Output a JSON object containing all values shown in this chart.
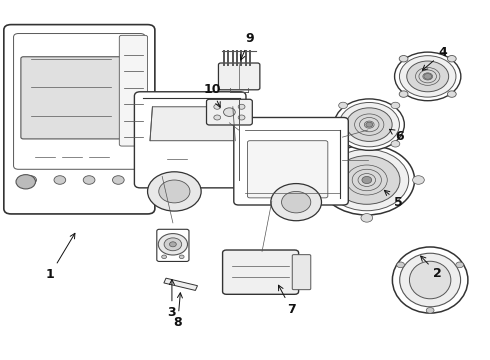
{
  "background_color": "#ffffff",
  "fig_width": 4.9,
  "fig_height": 3.6,
  "dpi": 100
}
